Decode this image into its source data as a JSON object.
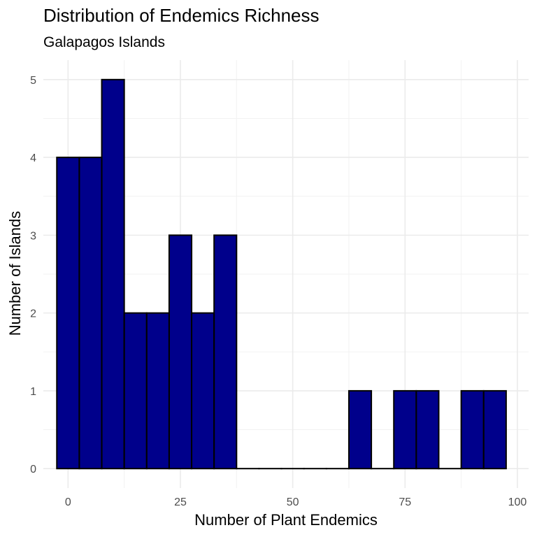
{
  "chart_data": {
    "type": "bar",
    "title": "Distribution of Endemics Richness",
    "subtitle": "Galapagos Islands",
    "xlabel": "Number of Plant Endemics",
    "ylabel": "Number of Islands",
    "binwidth": 5,
    "bin_centers": [
      0,
      5,
      10,
      15,
      20,
      25,
      30,
      35,
      40,
      45,
      50,
      55,
      60,
      65,
      70,
      75,
      80,
      85,
      90,
      95
    ],
    "values": [
      4,
      4,
      5,
      2,
      2,
      3,
      2,
      3,
      0,
      0,
      0,
      0,
      0,
      1,
      0,
      1,
      1,
      0,
      1,
      1
    ],
    "xlim": [
      -5.5,
      102.5
    ],
    "ylim": [
      -0.25,
      5.25
    ],
    "x_ticks": [
      0,
      25,
      50,
      75,
      100
    ],
    "x_tick_labels": [
      "0",
      "25",
      "50",
      "75",
      "100"
    ],
    "y_ticks": [
      0,
      1,
      2,
      3,
      4,
      5
    ],
    "y_tick_labels": [
      "0",
      "1",
      "2",
      "3",
      "4",
      "5"
    ],
    "grid": true,
    "bar_fill": "#00008B",
    "bar_stroke": "#000000"
  }
}
